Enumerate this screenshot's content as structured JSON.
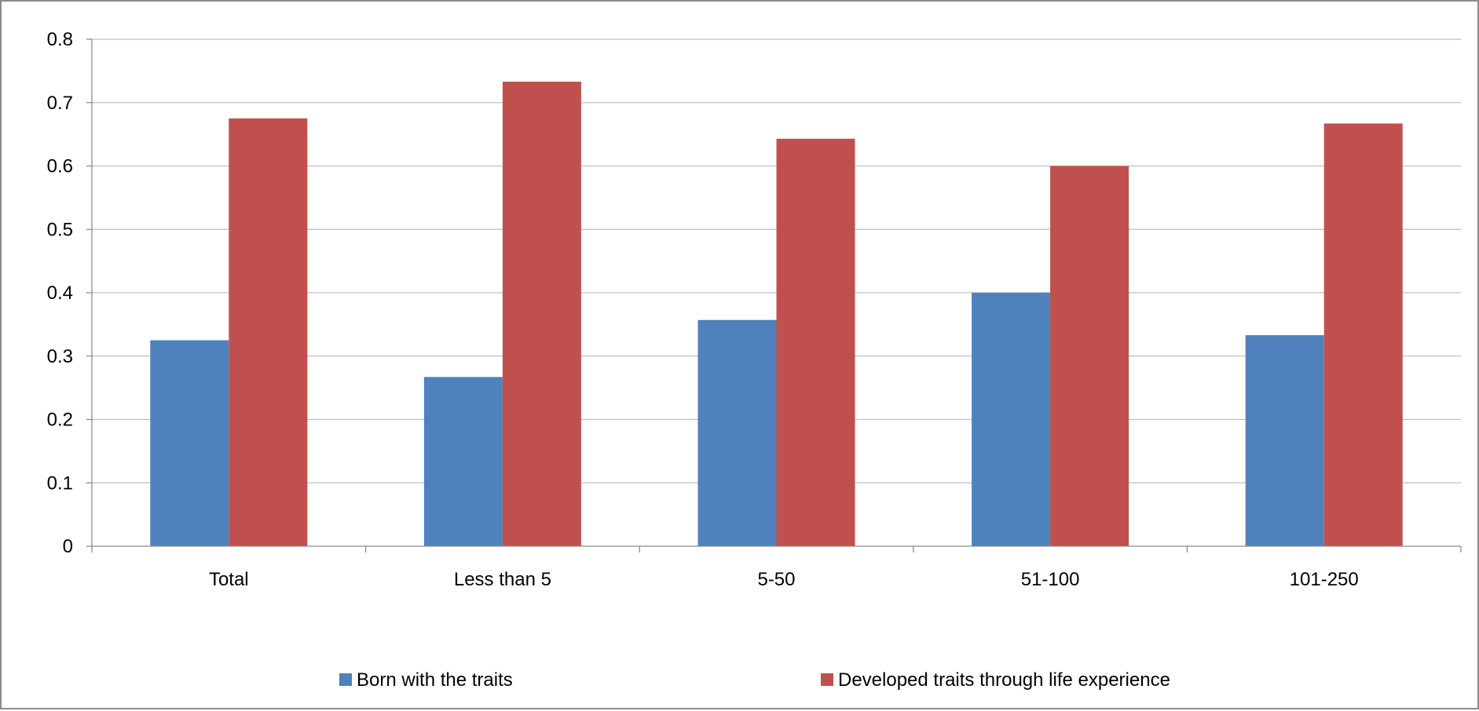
{
  "chart_data": {
    "type": "bar",
    "title": "",
    "xlabel": "",
    "ylabel": "",
    "categories": [
      "Total",
      "Less than 5",
      "5-50",
      "51-100",
      "101-250"
    ],
    "series": [
      {
        "name": "Born with the traits",
        "color": "#4F81BD",
        "values": [
          0.325,
          0.267,
          0.357,
          0.4,
          0.333
        ]
      },
      {
        "name": "Developed traits through life experience",
        "color": "#C0504D",
        "values": [
          0.675,
          0.733,
          0.643,
          0.6,
          0.667
        ]
      }
    ],
    "ylim": [
      0,
      0.8
    ],
    "yticks": [
      0,
      0.1,
      0.2,
      0.3,
      0.4,
      0.5,
      0.6,
      0.7,
      0.8
    ],
    "ytick_labels": [
      "0",
      "0.1",
      "0.2",
      "0.3",
      "0.4",
      "0.5",
      "0.6",
      "0.7",
      "0.8"
    ],
    "grid": true,
    "legend_position": "bottom"
  }
}
